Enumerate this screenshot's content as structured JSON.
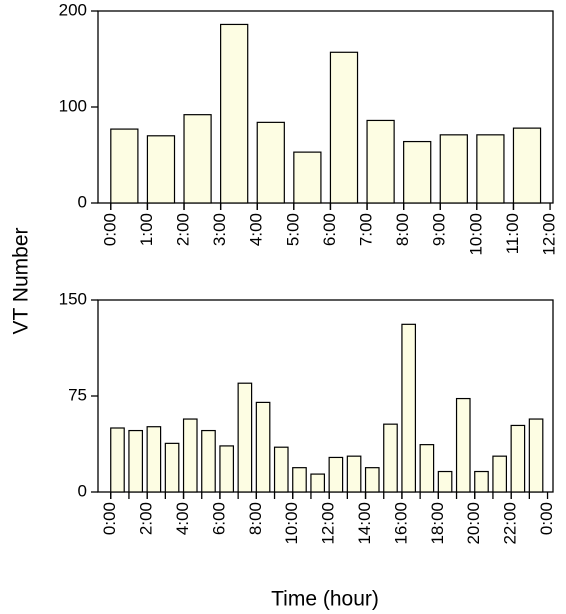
{
  "chart_data": [
    {
      "type": "bar",
      "ylabel": "VT Number",
      "x": [
        0,
        1,
        2,
        3,
        4,
        5,
        6,
        7,
        8,
        9,
        10,
        11
      ],
      "values": [
        77,
        70,
        92,
        186,
        84,
        53,
        157,
        86,
        64,
        71,
        71,
        78
      ],
      "color": "#fdfde3",
      "xlim": [
        -0.35,
        12.08
      ],
      "xticks": [
        {
          "value": 0,
          "label": "0:00"
        },
        {
          "value": 1,
          "label": "1:00"
        },
        {
          "value": 2,
          "label": "2:00"
        },
        {
          "value": 3,
          "label": "3:00"
        },
        {
          "value": 4,
          "label": "4:00"
        },
        {
          "value": 5,
          "label": "5:00"
        },
        {
          "value": 6,
          "label": "6:00"
        },
        {
          "value": 7,
          "label": "7:00"
        },
        {
          "value": 8,
          "label": "8:00"
        },
        {
          "value": 9,
          "label": "9:00"
        },
        {
          "value": 10,
          "label": "10:00"
        },
        {
          "value": 11,
          "label": "11:00"
        },
        {
          "value": 12,
          "label": "12:00"
        }
      ],
      "ylim": [
        0,
        200
      ],
      "yticks": [
        0,
        100,
        200
      ]
    },
    {
      "type": "bar",
      "xlabel": "Time (hour)",
      "x": [
        0,
        1,
        2,
        3,
        4,
        5,
        6,
        7,
        8,
        9,
        10,
        11,
        12,
        13,
        14,
        15,
        16,
        17,
        18,
        19,
        20,
        21,
        22,
        23
      ],
      "values": [
        50,
        48,
        51,
        38,
        57,
        48,
        36,
        85,
        70,
        35,
        19,
        14,
        27,
        28,
        19,
        53,
        131,
        37,
        16,
        73,
        16,
        28,
        52,
        57
      ],
      "color": "#fdfde3",
      "xlim": [
        -0.7,
        24.3
      ],
      "xticks": [
        {
          "value": 0,
          "label": "0:00"
        },
        {
          "value": 2,
          "label": "2:00"
        },
        {
          "value": 4,
          "label": "4:00"
        },
        {
          "value": 6,
          "label": "6:00"
        },
        {
          "value": 8,
          "label": "8:00"
        },
        {
          "value": 10,
          "label": "10:00"
        },
        {
          "value": 12,
          "label": "12:00"
        },
        {
          "value": 14,
          "label": "14:00"
        },
        {
          "value": 16,
          "label": "16:00"
        },
        {
          "value": 18,
          "label": "18:00"
        },
        {
          "value": 20,
          "label": "20:00"
        },
        {
          "value": 22,
          "label": "22:00"
        },
        {
          "value": 24,
          "label": "0:00"
        }
      ],
      "ylim": [
        0,
        150
      ],
      "yticks": [
        0,
        75,
        150
      ]
    }
  ]
}
